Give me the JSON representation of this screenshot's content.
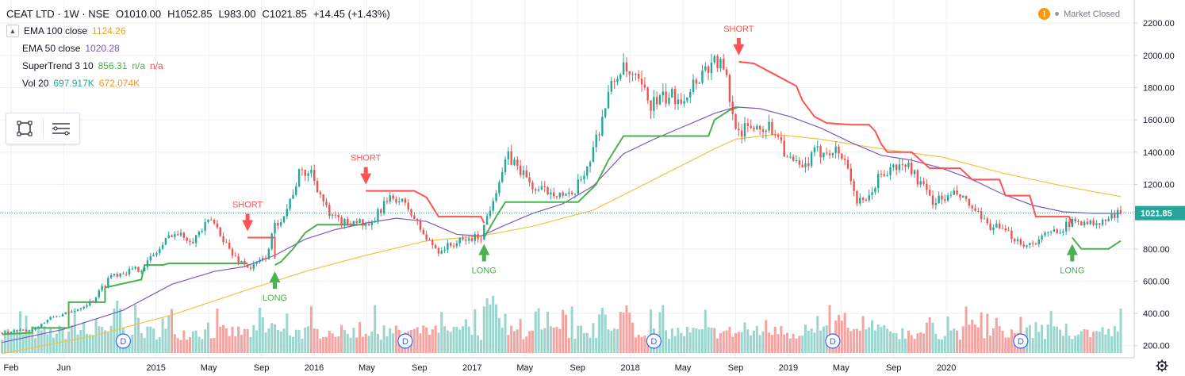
{
  "header": {
    "symbol": "CEAT LTD · 1W · NSE",
    "open": "O1010.00",
    "high": "H1052.85",
    "low": "L983.00",
    "close": "C1021.85",
    "change": "+14.45 (+1.43%)"
  },
  "indicators": {
    "ema100": {
      "label": "EMA 100 close",
      "value": "1124.26"
    },
    "ema50": {
      "label": "EMA 50 close",
      "value": "1020.28"
    },
    "supertrend": {
      "label": "SuperTrend 3 10",
      "value": "856.31",
      "na1": "n/a",
      "na2": "n/a"
    },
    "vol": {
      "label": "Vol 20",
      "value1": "697.917K",
      "value2": "672.074K"
    }
  },
  "market_status": {
    "warn": "!",
    "text": "Market Closed"
  },
  "colors": {
    "up": "#26a69a",
    "down": "#ef5350",
    "vol_up": "#9ad6cd",
    "vol_down": "#f5a3a1",
    "ema100": "#f5c242",
    "ema50": "#7e57c2",
    "st_up": "#4caf50",
    "st_down": "#ff5252",
    "grid": "#eef0f3",
    "axis_text": "#131722"
  },
  "chart_data": {
    "type": "candlestick",
    "title": "CEAT LTD · 1W · NSE",
    "price_range": [
      120,
      2230
    ],
    "y_ticks": [
      200,
      400,
      600,
      800,
      1000,
      1200,
      1400,
      1600,
      1800,
      2000,
      2200
    ],
    "y_tick_labels": [
      "200.00",
      "400.00",
      "600.00",
      "800.00",
      "1000.00",
      "1200.00",
      "1400.00",
      "1600.00",
      "1800.00",
      "2000.00",
      "2200.00"
    ],
    "x_tick_labels": [
      {
        "label": "Feb",
        "date": "2014-02"
      },
      {
        "label": "Jun",
        "date": "2014-06"
      },
      {
        "label": "2015",
        "date": "2015-01"
      },
      {
        "label": "May",
        "date": "2015-05"
      },
      {
        "label": "Sep",
        "date": "2015-09"
      },
      {
        "label": "2016",
        "date": "2016-01"
      },
      {
        "label": "May",
        "date": "2016-05"
      },
      {
        "label": "Sep",
        "date": "2016-09"
      },
      {
        "label": "2017",
        "date": "2017-01"
      },
      {
        "label": "May",
        "date": "2017-05"
      },
      {
        "label": "Sep",
        "date": "2017-09"
      },
      {
        "label": "2018",
        "date": "2018-01"
      },
      {
        "label": "May",
        "date": "2018-05"
      },
      {
        "label": "Sep",
        "date": "2018-09"
      },
      {
        "label": "2019",
        "date": "2019-01"
      },
      {
        "label": "May",
        "date": "2019-05"
      },
      {
        "label": "Sep",
        "date": "2019-09"
      },
      {
        "label": "2020",
        "date": "2020-01"
      }
    ],
    "last_price": 1021.85,
    "last_price_label": "1021.85",
    "price_path": [
      [
        0,
        280
      ],
      [
        10,
        300
      ],
      [
        17,
        380
      ],
      [
        22,
        400
      ],
      [
        30,
        480
      ],
      [
        36,
        640
      ],
      [
        46,
        680
      ],
      [
        52,
        800
      ],
      [
        56,
        900
      ],
      [
        63,
        860
      ],
      [
        69,
        980
      ],
      [
        72,
        900
      ],
      [
        76,
        760
      ],
      [
        82,
        680
      ],
      [
        87,
        750
      ],
      [
        90,
        940
      ],
      [
        94,
        1050
      ],
      [
        98,
        1260
      ],
      [
        102,
        1280
      ],
      [
        108,
        1000
      ],
      [
        113,
        960
      ],
      [
        117,
        980
      ],
      [
        121,
        920
      ],
      [
        126,
        1080
      ],
      [
        130,
        1120
      ],
      [
        134,
        1050
      ],
      [
        140,
        860
      ],
      [
        144,
        790
      ],
      [
        150,
        840
      ],
      [
        158,
        880
      ],
      [
        163,
        1180
      ],
      [
        167,
        1370
      ],
      [
        171,
        1290
      ],
      [
        176,
        1160
      ],
      [
        182,
        1160
      ],
      [
        188,
        1110
      ],
      [
        194,
        1360
      ],
      [
        197,
        1550
      ],
      [
        200,
        1760
      ],
      [
        204,
        1920
      ],
      [
        210,
        1820
      ],
      [
        214,
        1700
      ],
      [
        220,
        1740
      ],
      [
        225,
        1750
      ],
      [
        231,
        1900
      ],
      [
        235,
        1970
      ],
      [
        237,
        1940
      ],
      [
        239,
        1840
      ],
      [
        241,
        1620
      ],
      [
        244,
        1530
      ],
      [
        248,
        1560
      ],
      [
        252,
        1560
      ],
      [
        256,
        1520
      ],
      [
        259,
        1360
      ],
      [
        264,
        1290
      ],
      [
        268,
        1390
      ],
      [
        273,
        1420
      ],
      [
        276,
        1400
      ],
      [
        279,
        1310
      ],
      [
        282,
        1090
      ],
      [
        285,
        1080
      ],
      [
        289,
        1240
      ],
      [
        294,
        1300
      ],
      [
        299,
        1320
      ],
      [
        303,
        1200
      ],
      [
        307,
        1100
      ],
      [
        311,
        1110
      ],
      [
        315,
        1140
      ],
      [
        320,
        1050
      ],
      [
        324,
        960
      ],
      [
        328,
        930
      ],
      [
        333,
        880
      ],
      [
        338,
        820
      ],
      [
        343,
        870
      ],
      [
        348,
        920
      ],
      [
        353,
        960
      ],
      [
        357,
        980
      ],
      [
        361,
        940
      ],
      [
        365,
        990
      ],
      [
        369,
        1022
      ]
    ],
    "ema50_path": [
      [
        0,
        220
      ],
      [
        20,
        300
      ],
      [
        40,
        420
      ],
      [
        56,
        580
      ],
      [
        70,
        660
      ],
      [
        80,
        690
      ],
      [
        90,
        760
      ],
      [
        100,
        860
      ],
      [
        110,
        920
      ],
      [
        120,
        960
      ],
      [
        130,
        990
      ],
      [
        140,
        970
      ],
      [
        150,
        890
      ],
      [
        158,
        880
      ],
      [
        165,
        940
      ],
      [
        175,
        1020
      ],
      [
        185,
        1080
      ],
      [
        195,
        1190
      ],
      [
        205,
        1390
      ],
      [
        215,
        1480
      ],
      [
        225,
        1560
      ],
      [
        235,
        1640
      ],
      [
        242,
        1680
      ],
      [
        250,
        1670
      ],
      [
        260,
        1620
      ],
      [
        270,
        1550
      ],
      [
        280,
        1460
      ],
      [
        290,
        1380
      ],
      [
        300,
        1350
      ],
      [
        310,
        1300
      ],
      [
        320,
        1230
      ],
      [
        330,
        1140
      ],
      [
        340,
        1070
      ],
      [
        350,
        1030
      ],
      [
        360,
        1020
      ],
      [
        369,
        1020
      ]
    ],
    "ema100_path": [
      [
        0,
        150
      ],
      [
        30,
        260
      ],
      [
        56,
        390
      ],
      [
        80,
        540
      ],
      [
        100,
        660
      ],
      [
        120,
        760
      ],
      [
        140,
        850
      ],
      [
        158,
        880
      ],
      [
        175,
        940
      ],
      [
        195,
        1040
      ],
      [
        215,
        1230
      ],
      [
        235,
        1420
      ],
      [
        242,
        1480
      ],
      [
        255,
        1510
      ],
      [
        270,
        1480
      ],
      [
        290,
        1420
      ],
      [
        310,
        1370
      ],
      [
        330,
        1270
      ],
      [
        350,
        1190
      ],
      [
        369,
        1124
      ]
    ],
    "supertrend_segments": [
      {
        "dir": "up",
        "points": [
          [
            0,
            270
          ],
          [
            10,
            280
          ],
          [
            10,
            310
          ],
          [
            22,
            310
          ],
          [
            22,
            470
          ],
          [
            34,
            470
          ],
          [
            34,
            560
          ],
          [
            46,
            610
          ],
          [
            47,
            700
          ],
          [
            53,
            700
          ],
          [
            55,
            710
          ],
          [
            68,
            710
          ],
          [
            75,
            710
          ],
          [
            81,
            710
          ]
        ]
      },
      {
        "dir": "down",
        "points": [
          [
            81,
            870
          ],
          [
            90,
            870
          ],
          [
            90,
            740
          ]
        ]
      },
      {
        "dir": "up",
        "points": [
          [
            90,
            700
          ],
          [
            92,
            720
          ],
          [
            96,
            800
          ],
          [
            100,
            900
          ],
          [
            104,
            950
          ],
          [
            120,
            950
          ]
        ]
      },
      {
        "dir": "down",
        "points": [
          [
            120,
            1160
          ],
          [
            136,
            1160
          ],
          [
            140,
            1120
          ],
          [
            144,
            1000
          ],
          [
            158,
            1000
          ],
          [
            159,
            960
          ]
        ]
      },
      {
        "dir": "up",
        "points": [
          [
            159,
            870
          ],
          [
            163,
            1000
          ],
          [
            166,
            1090
          ],
          [
            190,
            1090
          ],
          [
            196,
            1200
          ],
          [
            200,
            1350
          ],
          [
            205,
            1500
          ],
          [
            233,
            1500
          ],
          [
            235,
            1600
          ],
          [
            240,
            1660
          ],
          [
            243,
            1680
          ]
        ]
      },
      {
        "dir": "down",
        "points": [
          [
            243,
            1960
          ],
          [
            248,
            1950
          ],
          [
            255,
            1880
          ],
          [
            262,
            1810
          ],
          [
            264,
            1720
          ],
          [
            268,
            1620
          ],
          [
            272,
            1580
          ],
          [
            280,
            1570
          ],
          [
            286,
            1570
          ],
          [
            288,
            1530
          ],
          [
            290,
            1450
          ],
          [
            292,
            1400
          ],
          [
            300,
            1400
          ],
          [
            306,
            1300
          ],
          [
            316,
            1300
          ],
          [
            320,
            1230
          ],
          [
            329,
            1230
          ],
          [
            331,
            1130
          ],
          [
            339,
            1130
          ],
          [
            341,
            1000
          ],
          [
            352,
            1000
          ],
          [
            353,
            950
          ]
        ]
      },
      {
        "dir": "up",
        "points": [
          [
            353,
            870
          ],
          [
            356,
            800
          ],
          [
            365,
            800
          ],
          [
            369,
            850
          ]
        ]
      }
    ],
    "signals": [
      {
        "type": "SHORT",
        "week": 81,
        "price": 870
      },
      {
        "type": "LONG",
        "week": 90,
        "price": 700
      },
      {
        "type": "SHORT",
        "week": 120,
        "price": 1160
      },
      {
        "type": "LONG",
        "week": 159,
        "price": 870
      },
      {
        "type": "SHORT",
        "week": 243,
        "price": 1960
      },
      {
        "type": "LONG",
        "week": 353,
        "price": 870
      }
    ],
    "dividend_markers": [
      {
        "label": "D",
        "week": 40
      },
      {
        "label": "D",
        "week": 133
      },
      {
        "label": "D",
        "week": 215
      },
      {
        "label": "D",
        "week": 274
      },
      {
        "label": "D",
        "week": 336
      }
    ],
    "volume": {
      "max": 1.6,
      "base": 0.55,
      "spikes": [
        [
          38,
          2.2
        ],
        [
          160,
          2.3
        ],
        [
          162,
          2.4
        ],
        [
          198,
          1.9
        ],
        [
          206,
          2.0
        ],
        [
          276,
          1.6
        ],
        [
          306,
          1.5
        ],
        [
          320,
          1.4
        ]
      ]
    }
  }
}
